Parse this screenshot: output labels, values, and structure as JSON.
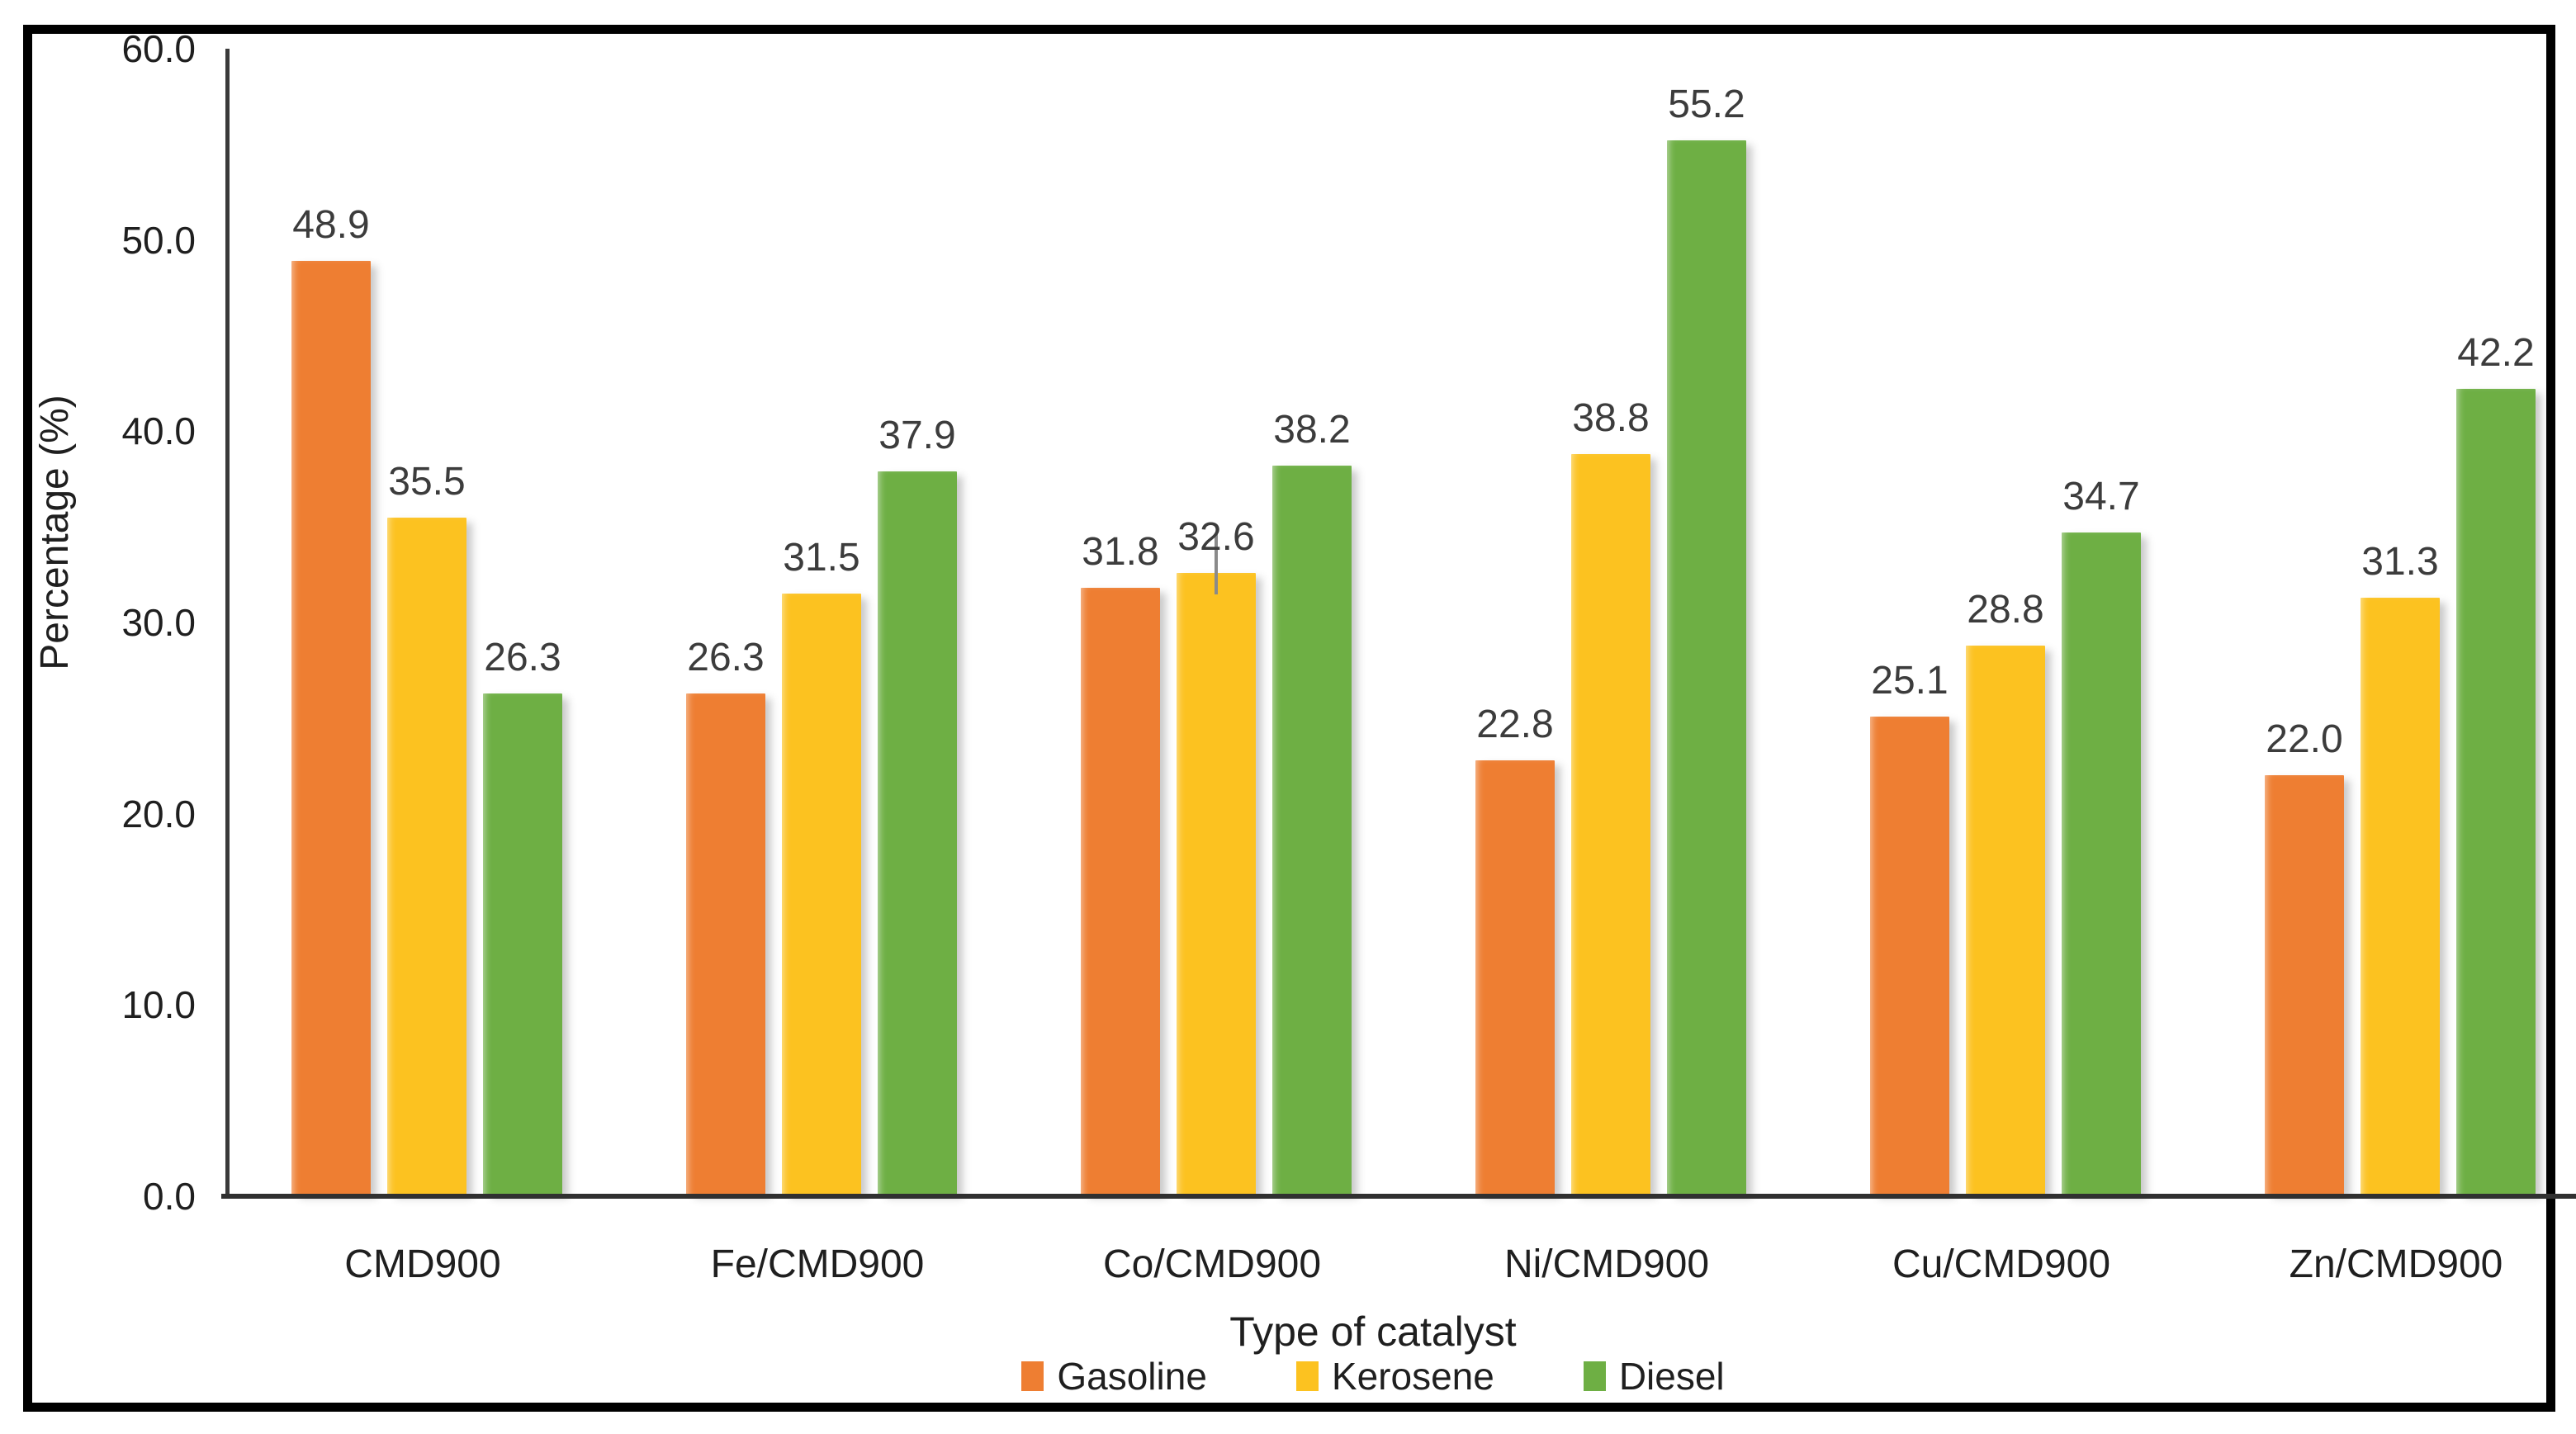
{
  "chart_data": {
    "type": "bar",
    "title": "",
    "xlabel": "Type of catalyst",
    "ylabel": "Percentage (%)",
    "ylim": [
      0,
      60
    ],
    "ytick_labels": [
      "0.0",
      "10.0",
      "20.0",
      "30.0",
      "40.0",
      "50.0",
      "60.0"
    ],
    "grid": false,
    "legend_position": "bottom",
    "value_label_decimals": 1,
    "categories": [
      "CMD900",
      "Fe/CMD900",
      "Co/CMD900",
      "Ni/CMD900",
      "Cu/CMD900",
      "Zn/CMD900"
    ],
    "series": [
      {
        "name": "Gasoline",
        "color": "#EE7E32",
        "values": [
          48.9,
          26.3,
          31.8,
          22.8,
          25.1,
          22.0
        ]
      },
      {
        "name": "Kerosene",
        "color": "#FCC220",
        "values": [
          35.5,
          31.5,
          32.6,
          38.8,
          28.8,
          31.3
        ]
      },
      {
        "name": "Diesel",
        "color": "#6EAF44",
        "values": [
          26.3,
          37.9,
          38.2,
          55.2,
          34.7,
          42.2
        ]
      }
    ],
    "error_bars": [
      {
        "category": "Co/CMD900",
        "series": "Kerosene",
        "visible_extent": 2.0
      }
    ],
    "frame_border_color": "#000000",
    "axis_color": "#303030",
    "error_bar_color": "#8a8a8a"
  }
}
